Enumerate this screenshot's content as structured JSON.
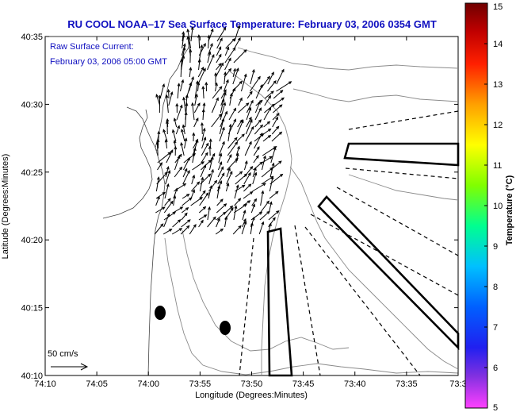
{
  "title": "RU COOL  NOAA–17  Sea Surface Temperature:  February 03, 2006 0354 GMT",
  "note_line1": "Raw Surface Current:",
  "note_line2": "February 03, 2006 05:00 GMT",
  "scale_label": "50 cm/s",
  "xlabel": "Longitude (Degrees:Minutes)",
  "ylabel": "Latitude (Degrees:Minutes)",
  "colorbar_label": "Temperature (°C)",
  "x_ticks": [
    "74:10",
    "74:05",
    "74:00",
    "73:55",
    "73:50",
    "73:45",
    "73:40",
    "73:35",
    "73:3"
  ],
  "y_ticks": [
    "40:35",
    "40:30",
    "40:25",
    "40:20",
    "40:15",
    "40:10"
  ],
  "cb_ticks": [
    "15",
    "14",
    "13",
    "12",
    "11",
    "10",
    "9",
    "8",
    "7",
    "6",
    "5"
  ],
  "cb_colors": [
    "#ff40ff",
    "#6020d0",
    "#0000ff",
    "#0080ff",
    "#00e0ff",
    "#00ff80",
    "#80ff00",
    "#ffff00",
    "#ff9000",
    "#ff0000",
    "#700000"
  ],
  "markers_color": "#000000"
}
